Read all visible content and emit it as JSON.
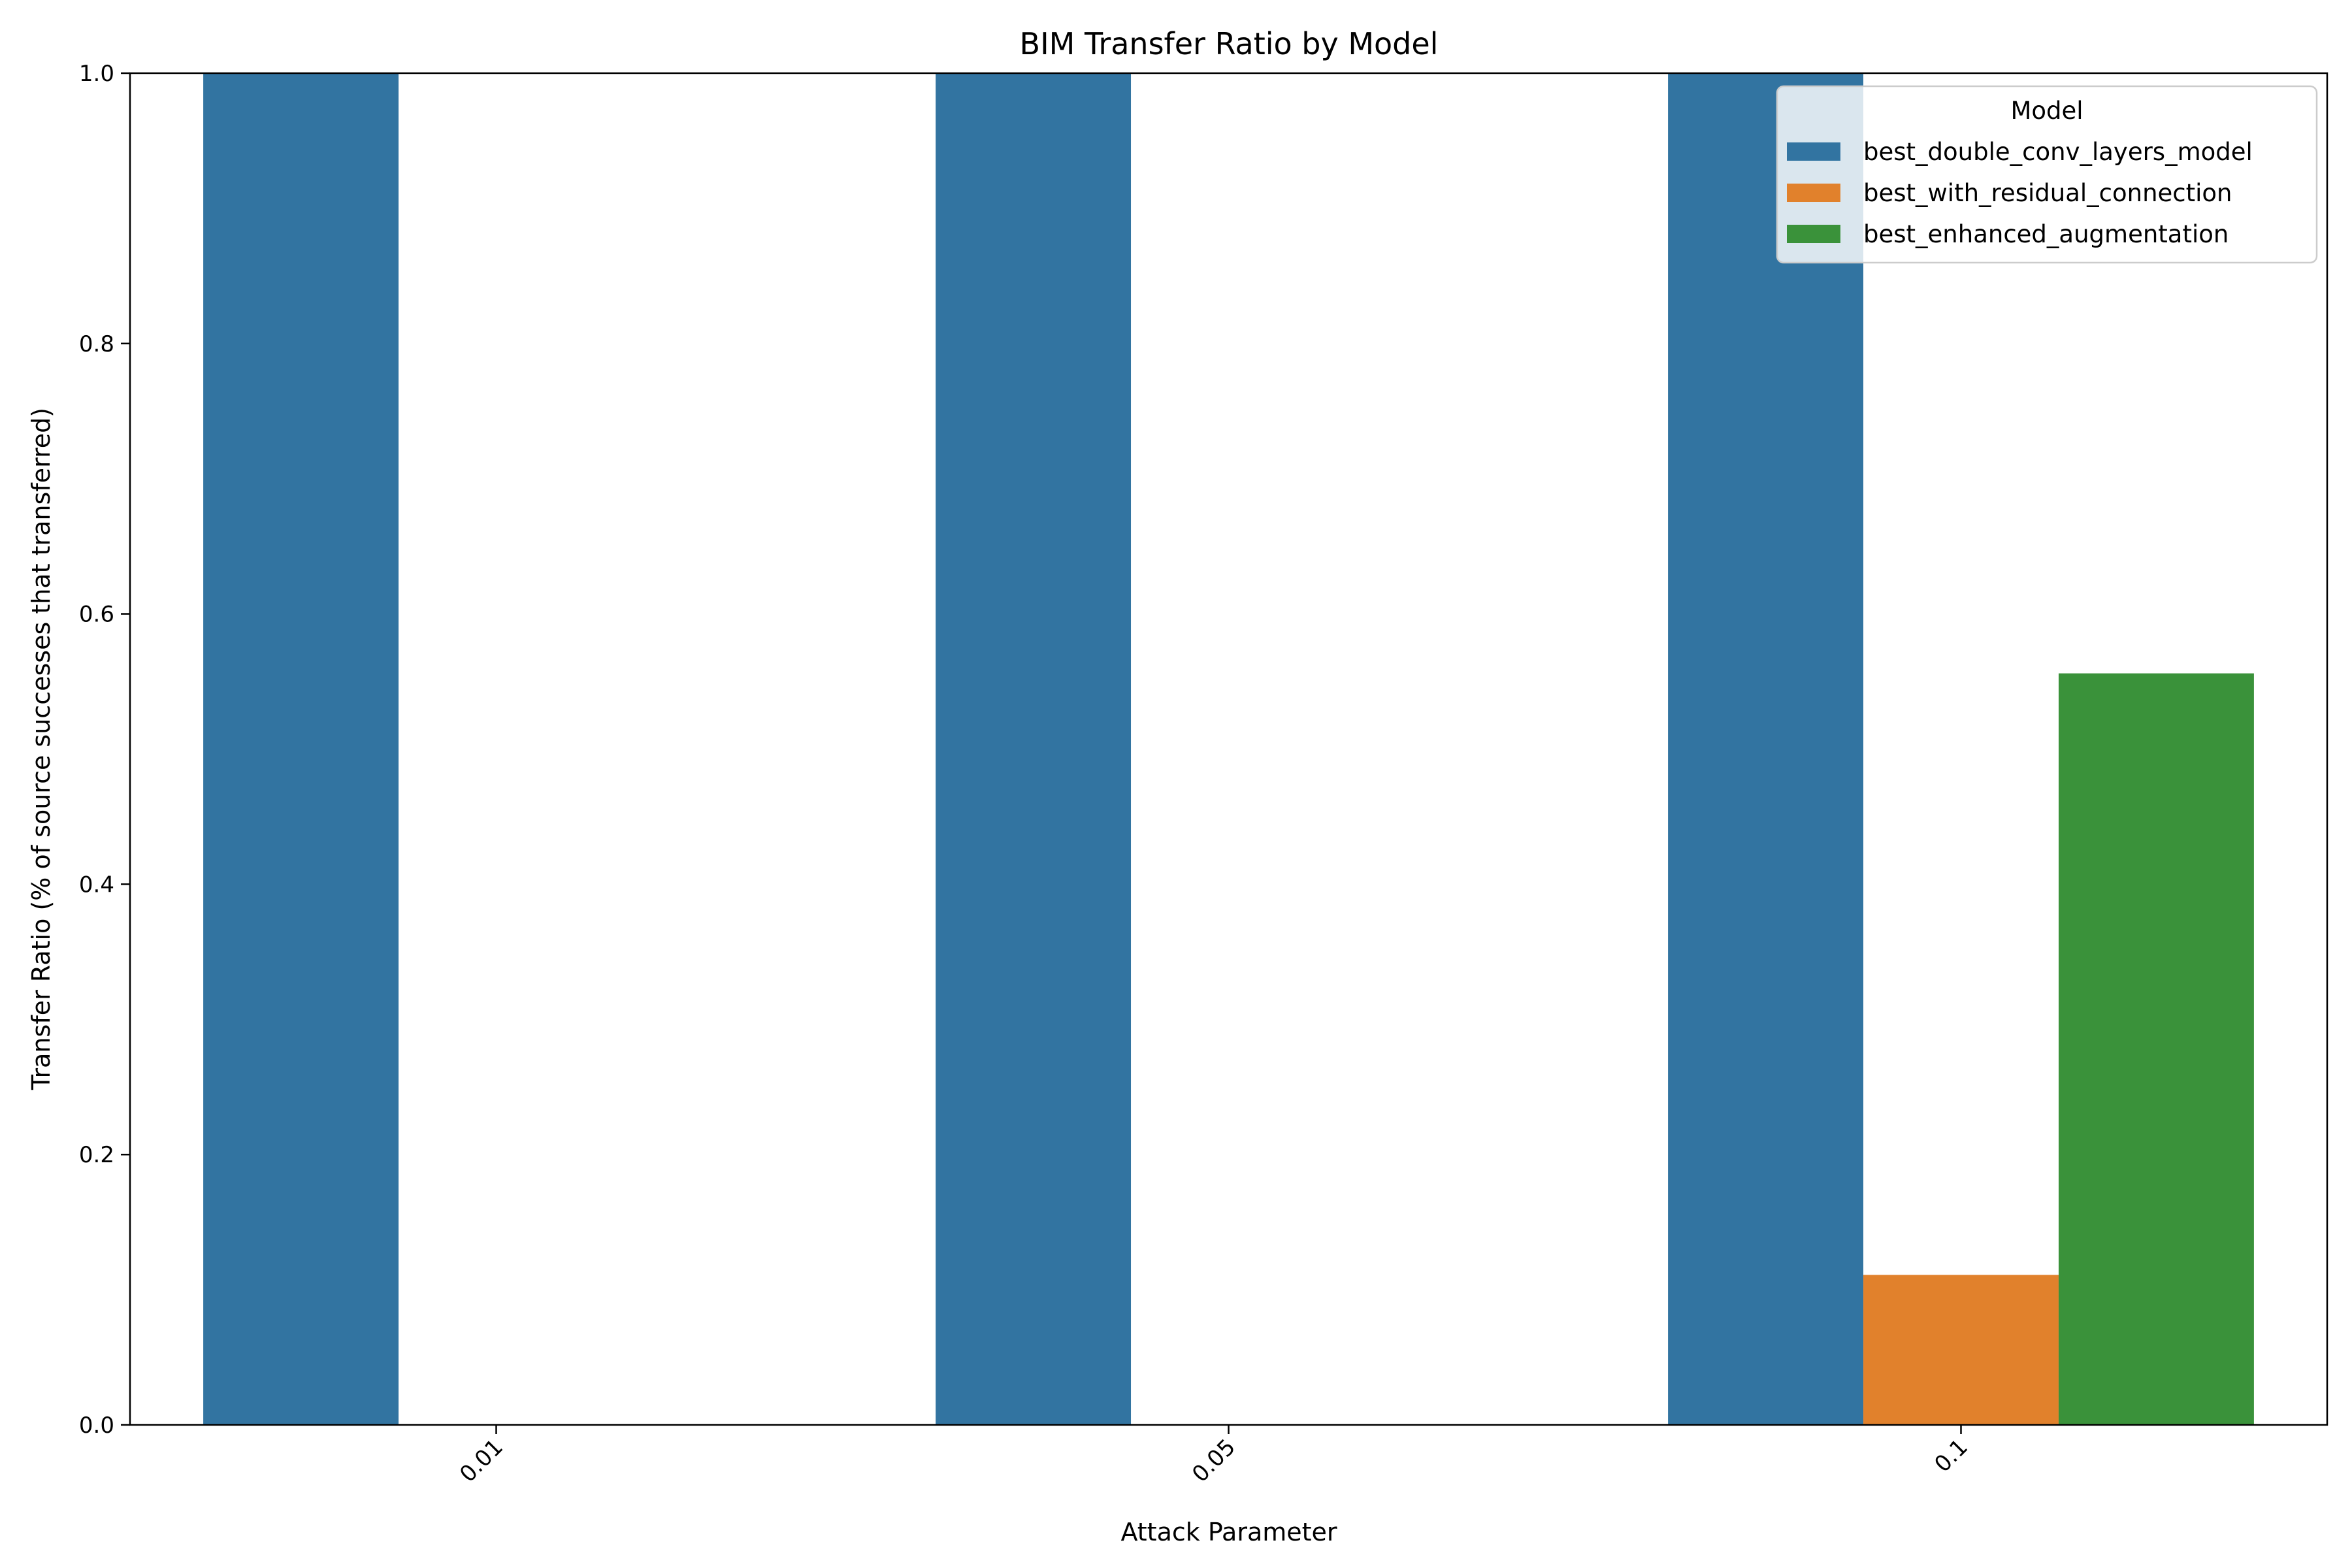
{
  "chart_data": {
    "type": "bar",
    "title": "BIM Transfer Ratio by Model",
    "xlabel": "Attack Parameter",
    "ylabel": "Transfer Ratio (% of source successes that transferred)",
    "categories": [
      "0.01",
      "0.05",
      "0.1"
    ],
    "series": [
      {
        "name": "best_double_conv_layers_model",
        "values": [
          1.0,
          1.0,
          1.0
        ],
        "color": "#3274a1"
      },
      {
        "name": "best_with_residual_connection",
        "values": [
          0.0,
          0.0,
          0.111
        ],
        "color": "#e1812c"
      },
      {
        "name": "best_enhanced_augmentation",
        "values": [
          0.0,
          0.0,
          0.556
        ],
        "color": "#3a923a"
      }
    ],
    "ylim": [
      0,
      1.0
    ],
    "yticks": [
      "0.0",
      "0.2",
      "0.4",
      "0.6",
      "0.8",
      "1.0"
    ],
    "grid": false,
    "legend": {
      "title": "Model",
      "placement": "top-right"
    }
  }
}
